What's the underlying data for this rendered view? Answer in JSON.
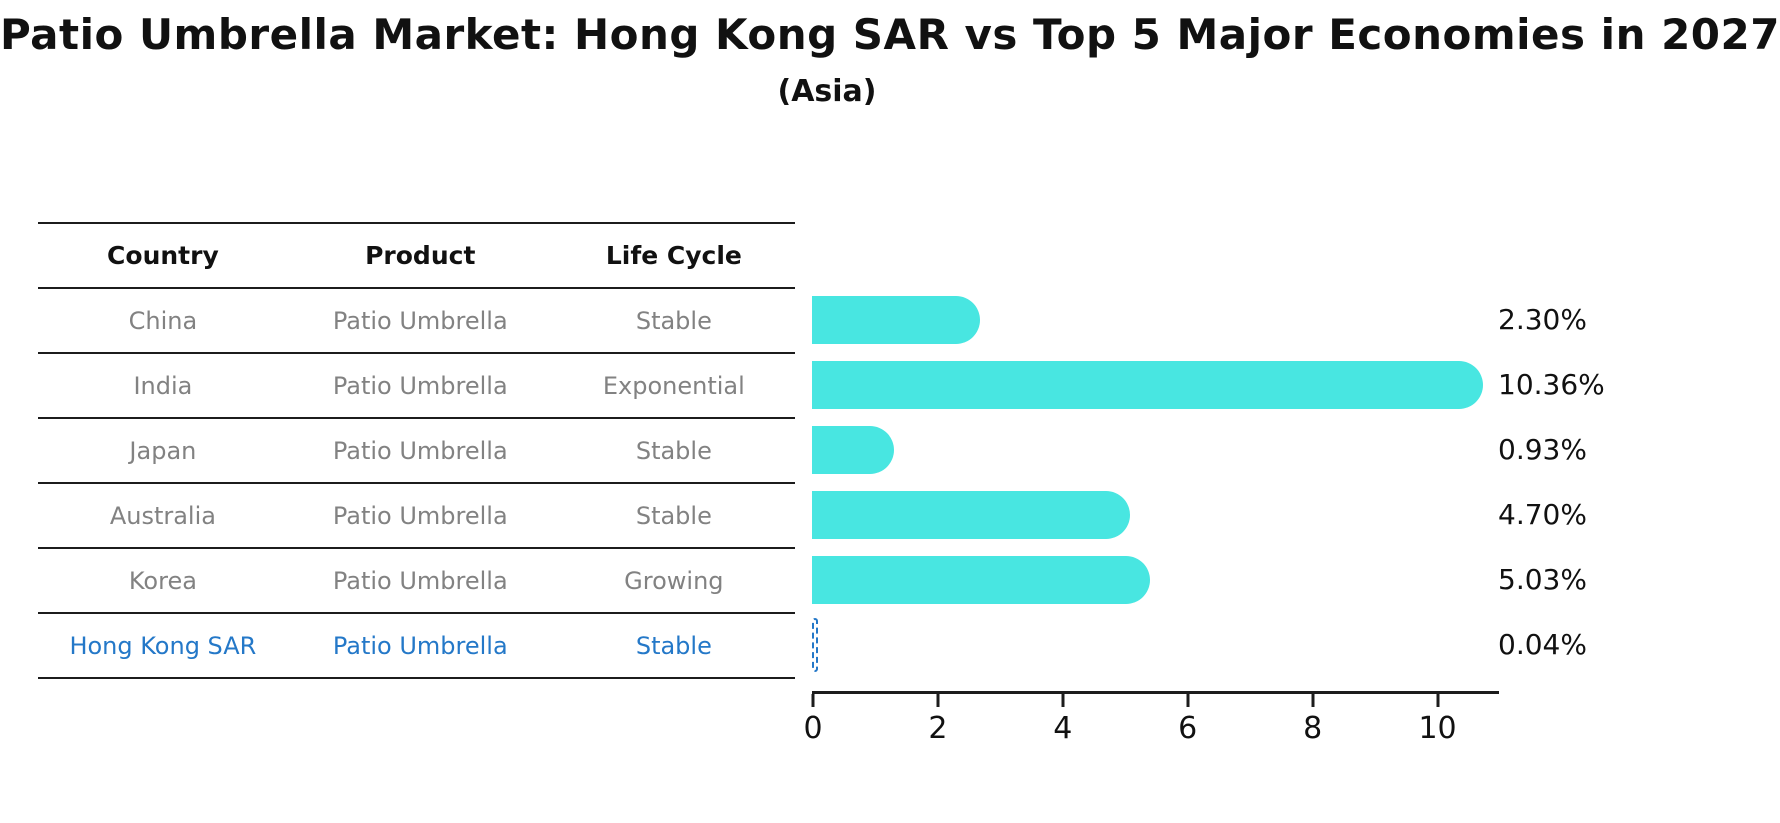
{
  "title": "Patio Umbrella Market: Hong Kong SAR vs Top 5 Major Economies in 2027",
  "subtitle": "(Asia)",
  "table": {
    "headers": [
      "Country",
      "Product",
      "Life Cycle"
    ],
    "rows": [
      {
        "country": "China",
        "product": "Patio Umbrella",
        "life_cycle": "Stable",
        "highlight": false
      },
      {
        "country": "India",
        "product": "Patio Umbrella",
        "life_cycle": "Exponential",
        "highlight": false
      },
      {
        "country": "Japan",
        "product": "Patio Umbrella",
        "life_cycle": "Stable",
        "highlight": false
      },
      {
        "country": "Australia",
        "product": "Patio Umbrella",
        "life_cycle": "Stable",
        "highlight": false
      },
      {
        "country": "Korea",
        "product": "Patio Umbrella",
        "life_cycle": "Growing",
        "highlight": false
      },
      {
        "country": "Hong Kong SAR",
        "product": "Patio Umbrella",
        "life_cycle": "Stable",
        "highlight": true
      }
    ]
  },
  "chart_data": {
    "type": "bar",
    "orientation": "horizontal",
    "title": "Patio Umbrella Market: Hong Kong SAR vs Top 5 Major Economies in 2027",
    "subtitle": "(Asia)",
    "categories": [
      "China",
      "India",
      "Japan",
      "Australia",
      "Korea",
      "Hong Kong SAR"
    ],
    "values": [
      2.3,
      10.36,
      0.93,
      4.7,
      5.03,
      0.04
    ],
    "value_labels": [
      "2.30%",
      "10.36%",
      "0.93%",
      "4.70%",
      "5.03%",
      "0.04%"
    ],
    "x_ticks": [
      0,
      2,
      4,
      6,
      8,
      10
    ],
    "xlim": [
      0,
      11
    ],
    "grid": false,
    "legend": false,
    "bar_color": "#48e6e1",
    "highlight_bar_color": "#2478c8",
    "highlight_text_color": "#2478c8"
  }
}
